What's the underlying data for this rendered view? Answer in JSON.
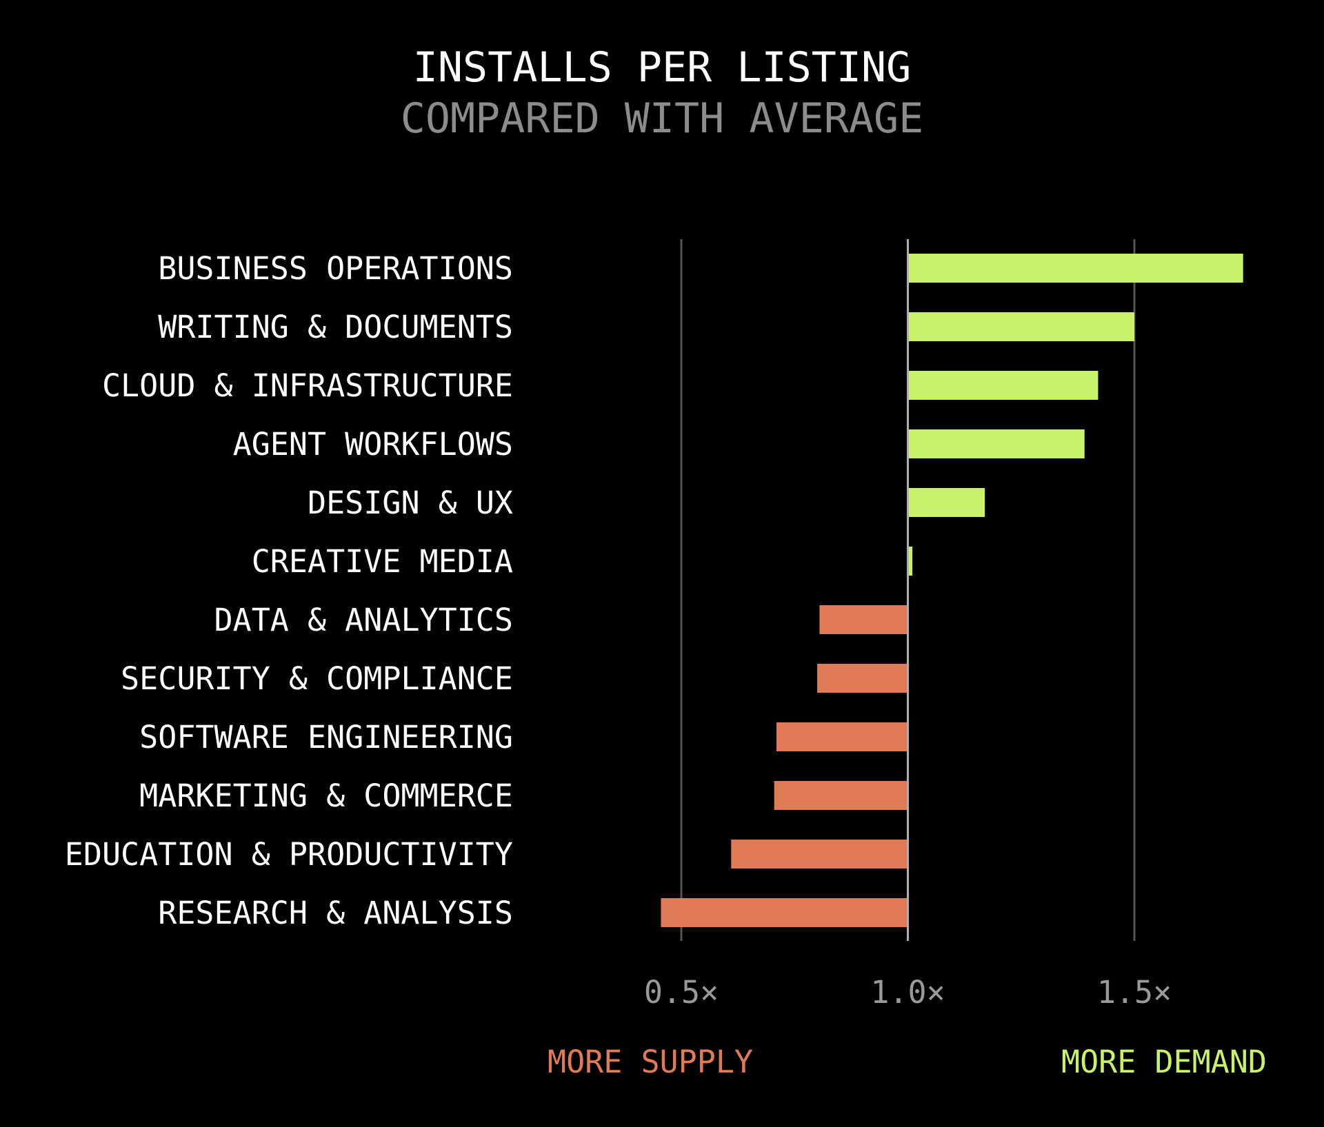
{
  "chart_data": {
    "type": "bar",
    "orientation": "horizontal",
    "title": "INSTALLS PER LISTING",
    "subtitle": "COMPARED WITH AVERAGE",
    "baseline": 1.0,
    "categories": [
      "BUSINESS OPERATIONS",
      "WRITING & DOCUMENTS",
      "CLOUD & INFRASTRUCTURE",
      "AGENT WORKFLOWS",
      "DESIGN & UX",
      "CREATIVE MEDIA",
      "DATA & ANALYTICS",
      "SECURITY & COMPLIANCE",
      "SOFTWARE ENGINEERING",
      "MARKETING & COMMERCE",
      "EDUCATION & PRODUCTIVITY",
      "RESEARCH & ANALYSIS"
    ],
    "values": [
      1.74,
      1.5,
      1.42,
      1.39,
      1.17,
      1.01,
      0.805,
      0.8,
      0.71,
      0.705,
      0.61,
      0.455
    ],
    "xlim": [
      0.5,
      1.5
    ],
    "xticks": [
      {
        "value": 0.5,
        "label": "0.5×"
      },
      {
        "value": 1.0,
        "label": "1.0×"
      },
      {
        "value": 1.5,
        "label": "1.5×"
      }
    ],
    "grid": true,
    "direction_labels": {
      "below": "MORE SUPPLY",
      "above": "MORE DEMAND"
    },
    "colors": {
      "above": "#c8f26a",
      "below": "#e07b55",
      "baseline": "#b0b0b0",
      "grid": "#555555"
    }
  }
}
